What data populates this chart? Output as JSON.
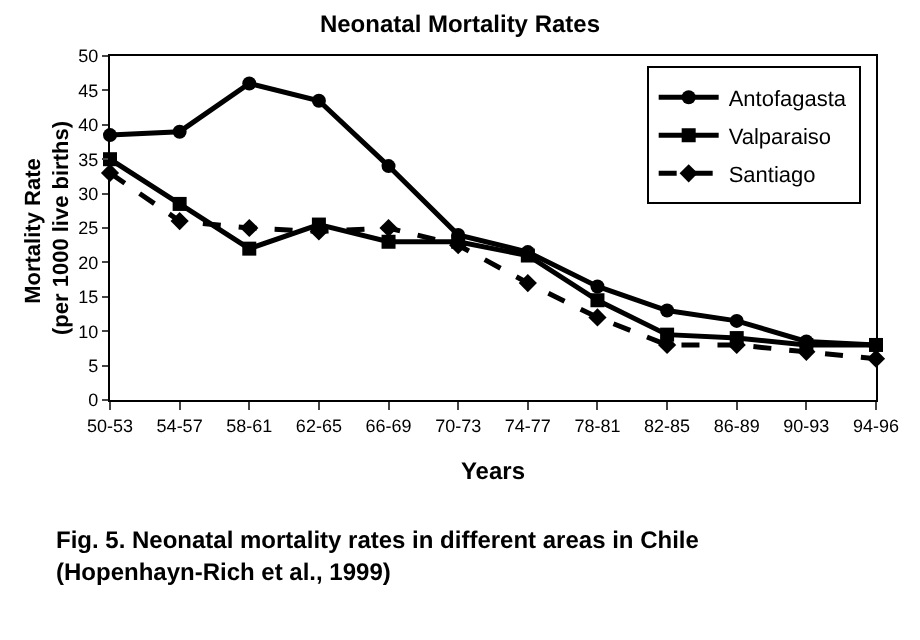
{
  "chart_data": {
    "type": "line",
    "title": "Neonatal Mortality Rates",
    "xlabel": "Years",
    "ylabel": "Mortality Rate (per 1000 live births)",
    "categories": [
      "50-53",
      "54-57",
      "58-61",
      "62-65",
      "66-69",
      "70-73",
      "74-77",
      "78-81",
      "82-85",
      "86-89",
      "90-93",
      "94-96"
    ],
    "series": [
      {
        "name": "Antofagasta",
        "color": "#000000",
        "marker": "circle",
        "line_style": "solid",
        "values": [
          38.5,
          39,
          46,
          43.5,
          34,
          24,
          21.5,
          16.5,
          13,
          11.5,
          8.5,
          8
        ]
      },
      {
        "name": "Valparaiso",
        "color": "#000000",
        "marker": "square",
        "line_style": "solid",
        "values": [
          35,
          28.5,
          22,
          25.5,
          23,
          23,
          21,
          14.5,
          9.5,
          9,
          8,
          8
        ]
      },
      {
        "name": "Santiago",
        "color": "#000000",
        "marker": "diamond",
        "line_style": "dashed",
        "values": [
          33,
          26,
          25,
          24.5,
          25,
          22.5,
          17,
          12,
          8,
          8,
          7,
          6
        ]
      }
    ],
    "ylim": [
      0,
      50
    ],
    "yticks": [
      0,
      5,
      10,
      15,
      20,
      25,
      30,
      35,
      40,
      45,
      50
    ],
    "grid": false,
    "legend": "top right",
    "annotations": [
      "Fig. 5.  Neonatal mortality rates in different areas in Chile",
      "(Hopenhayn-Rich et al., 1999)"
    ]
  }
}
